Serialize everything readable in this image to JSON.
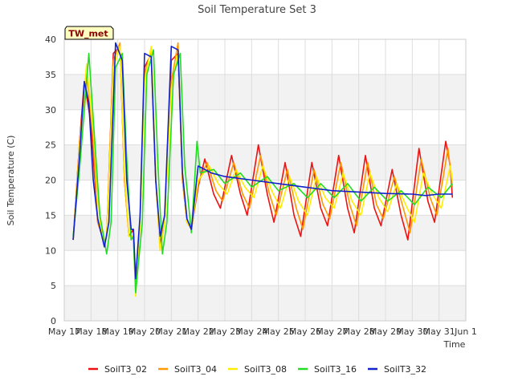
{
  "chart_data": {
    "type": "line",
    "title": "Soil Temperature Set 3",
    "xlabel": "Time",
    "ylabel": "Soil Temperature (C)",
    "ylim": [
      0,
      40
    ],
    "yticks": [
      0,
      5,
      10,
      15,
      20,
      25,
      30,
      35,
      40
    ],
    "xlim": [
      "2024-05-17",
      "2024-06-01"
    ],
    "xticks": [
      "May 17",
      "May 18",
      "May 19",
      "May 20",
      "May 21",
      "May 22",
      "May 23",
      "May 24",
      "May 25",
      "May 26",
      "May 27",
      "May 28",
      "May 29",
      "May 30",
      "May 31",
      "Jun 1"
    ],
    "grid": true,
    "legend_position": "bottom",
    "site_badge": "TW_met",
    "series": [
      {
        "name": "SoilT3_02",
        "color": "#ee1111",
        "points": [
          [
            "2024-05-17 08:00",
            11.5
          ],
          [
            "2024-05-17 14:00",
            26
          ],
          [
            "2024-05-17 18:00",
            34
          ],
          [
            "2024-05-18 00:00",
            28
          ],
          [
            "2024-05-18 06:00",
            14
          ],
          [
            "2024-05-18 12:00",
            11
          ],
          [
            "2024-05-18 14:00",
            12
          ],
          [
            "2024-05-18 20:00",
            38
          ],
          [
            "2024-05-19 02:00",
            39
          ],
          [
            "2024-05-19 06:00",
            20
          ],
          [
            "2024-05-19 10:00",
            12
          ],
          [
            "2024-05-19 14:00",
            13
          ],
          [
            "2024-05-19 16:00",
            5
          ],
          [
            "2024-05-19 20:00",
            14
          ],
          [
            "2024-05-20 00:00",
            36
          ],
          [
            "2024-05-20 06:00",
            38
          ],
          [
            "2024-05-20 10:00",
            20
          ],
          [
            "2024-05-20 14:00",
            11
          ],
          [
            "2024-05-20 18:00",
            14
          ],
          [
            "2024-05-21 00:00",
            37
          ],
          [
            "2024-05-21 06:00",
            38
          ],
          [
            "2024-05-21 10:00",
            20
          ],
          [
            "2024-05-21 14:00",
            14
          ],
          [
            "2024-05-21 18:00",
            13
          ],
          [
            "2024-05-22 00:00",
            19
          ],
          [
            "2024-05-22 06:00",
            23
          ],
          [
            "2024-05-22 14:00",
            18
          ],
          [
            "2024-05-22 20:00",
            16
          ],
          [
            "2024-05-23 06:00",
            23.5
          ],
          [
            "2024-05-23 14:00",
            18
          ],
          [
            "2024-05-23 20:00",
            15
          ],
          [
            "2024-05-24 06:00",
            25
          ],
          [
            "2024-05-24 14:00",
            18
          ],
          [
            "2024-05-24 20:00",
            14
          ],
          [
            "2024-05-25 06:00",
            22.5
          ],
          [
            "2024-05-25 14:00",
            15
          ],
          [
            "2024-05-25 20:00",
            12
          ],
          [
            "2024-05-26 06:00",
            22.5
          ],
          [
            "2024-05-26 14:00",
            16
          ],
          [
            "2024-05-26 20:00",
            13.5
          ],
          [
            "2024-05-27 06:00",
            23.5
          ],
          [
            "2024-05-27 14:00",
            16
          ],
          [
            "2024-05-27 20:00",
            12.5
          ],
          [
            "2024-05-28 06:00",
            23.5
          ],
          [
            "2024-05-28 14:00",
            16
          ],
          [
            "2024-05-28 20:00",
            13.5
          ],
          [
            "2024-05-29 06:00",
            21.5
          ],
          [
            "2024-05-29 14:00",
            15
          ],
          [
            "2024-05-29 20:00",
            11.5
          ],
          [
            "2024-05-30 06:00",
            24.5
          ],
          [
            "2024-05-30 14:00",
            17
          ],
          [
            "2024-05-30 20:00",
            14
          ],
          [
            "2024-05-31 06:00",
            25.5
          ],
          [
            "2024-05-31 10:00",
            22
          ],
          [
            "2024-05-31 12:00",
            17.5
          ]
        ]
      },
      {
        "name": "SoilT3_04",
        "color": "#ff9900",
        "points": [
          [
            "2024-05-17 08:00",
            11.5
          ],
          [
            "2024-05-17 14:00",
            26
          ],
          [
            "2024-05-17 20:00",
            35
          ],
          [
            "2024-05-18 02:00",
            26
          ],
          [
            "2024-05-18 06:00",
            14
          ],
          [
            "2024-05-18 12:00",
            11
          ],
          [
            "2024-05-18 14:00",
            12
          ],
          [
            "2024-05-18 20:00",
            37
          ],
          [
            "2024-05-19 02:00",
            39.5
          ],
          [
            "2024-05-19 06:00",
            20
          ],
          [
            "2024-05-19 10:00",
            12
          ],
          [
            "2024-05-19 14:00",
            12
          ],
          [
            "2024-05-19 16:00",
            4
          ],
          [
            "2024-05-19 20:00",
            14
          ],
          [
            "2024-05-20 00:00",
            35
          ],
          [
            "2024-05-20 06:00",
            38.5
          ],
          [
            "2024-05-20 10:00",
            20
          ],
          [
            "2024-05-20 14:00",
            10
          ],
          [
            "2024-05-20 18:00",
            14
          ],
          [
            "2024-05-21 00:00",
            34
          ],
          [
            "2024-05-21 06:00",
            39.5
          ],
          [
            "2024-05-21 10:00",
            20
          ],
          [
            "2024-05-21 14:00",
            14
          ],
          [
            "2024-05-21 18:00",
            13
          ],
          [
            "2024-05-22 00:00",
            19.5
          ],
          [
            "2024-05-22 08:00",
            22.5
          ],
          [
            "2024-05-22 16:00",
            18.5
          ],
          [
            "2024-05-22 22:00",
            17
          ],
          [
            "2024-05-23 08:00",
            22.5
          ],
          [
            "2024-05-23 16:00",
            18
          ],
          [
            "2024-05-23 22:00",
            16
          ],
          [
            "2024-05-24 08:00",
            23.5
          ],
          [
            "2024-05-24 16:00",
            18
          ],
          [
            "2024-05-24 22:00",
            15
          ],
          [
            "2024-05-25 08:00",
            21.5
          ],
          [
            "2024-05-25 16:00",
            16
          ],
          [
            "2024-05-25 22:00",
            13
          ],
          [
            "2024-05-26 08:00",
            21.5
          ],
          [
            "2024-05-26 16:00",
            16.5
          ],
          [
            "2024-05-26 22:00",
            14.5
          ],
          [
            "2024-05-27 08:00",
            22.5
          ],
          [
            "2024-05-27 16:00",
            16.5
          ],
          [
            "2024-05-27 22:00",
            13.5
          ],
          [
            "2024-05-28 08:00",
            22.5
          ],
          [
            "2024-05-28 16:00",
            16.5
          ],
          [
            "2024-05-28 22:00",
            14.5
          ],
          [
            "2024-05-29 08:00",
            20.5
          ],
          [
            "2024-05-29 16:00",
            16
          ],
          [
            "2024-05-29 22:00",
            12.5
          ],
          [
            "2024-05-30 08:00",
            23
          ],
          [
            "2024-05-30 16:00",
            17.5
          ],
          [
            "2024-05-30 22:00",
            15
          ],
          [
            "2024-05-31 08:00",
            24.5
          ],
          [
            "2024-05-31 12:00",
            19
          ]
        ]
      },
      {
        "name": "SoilT3_08",
        "color": "#ffee00",
        "points": [
          [
            "2024-05-17 08:00",
            11.5
          ],
          [
            "2024-05-17 14:00",
            25
          ],
          [
            "2024-05-17 20:00",
            36.5
          ],
          [
            "2024-05-18 02:00",
            27
          ],
          [
            "2024-05-18 08:00",
            14
          ],
          [
            "2024-05-18 12:00",
            11
          ],
          [
            "2024-05-18 14:00",
            12
          ],
          [
            "2024-05-18 20:00",
            36
          ],
          [
            "2024-05-19 02:00",
            39
          ],
          [
            "2024-05-19 06:00",
            21
          ],
          [
            "2024-05-19 10:00",
            12
          ],
          [
            "2024-05-19 14:00",
            12
          ],
          [
            "2024-05-19 16:00",
            3.5
          ],
          [
            "2024-05-19 20:00",
            14
          ],
          [
            "2024-05-20 00:00",
            34
          ],
          [
            "2024-05-20 06:00",
            39
          ],
          [
            "2024-05-20 10:00",
            21
          ],
          [
            "2024-05-20 14:00",
            10
          ],
          [
            "2024-05-20 18:00",
            14
          ],
          [
            "2024-05-21 00:00",
            33
          ],
          [
            "2024-05-21 06:00",
            38
          ],
          [
            "2024-05-21 10:00",
            21
          ],
          [
            "2024-05-21 14:00",
            14
          ],
          [
            "2024-05-21 18:00",
            13
          ],
          [
            "2024-05-22 00:00",
            20
          ],
          [
            "2024-05-22 10:00",
            22
          ],
          [
            "2024-05-22 18:00",
            19.5
          ],
          [
            "2024-05-23 02:00",
            18
          ],
          [
            "2024-05-23 10:00",
            21.5
          ],
          [
            "2024-05-23 18:00",
            19
          ],
          [
            "2024-05-24 02:00",
            17.5
          ],
          [
            "2024-05-24 10:00",
            22
          ],
          [
            "2024-05-24 18:00",
            18.5
          ],
          [
            "2024-05-25 02:00",
            16
          ],
          [
            "2024-05-25 10:00",
            20.5
          ],
          [
            "2024-05-25 18:00",
            17
          ],
          [
            "2024-05-26 02:00",
            15
          ],
          [
            "2024-05-26 10:00",
            20.5
          ],
          [
            "2024-05-26 18:00",
            17.5
          ],
          [
            "2024-05-27 02:00",
            16
          ],
          [
            "2024-05-27 10:00",
            21
          ],
          [
            "2024-05-27 18:00",
            17
          ],
          [
            "2024-05-28 02:00",
            15
          ],
          [
            "2024-05-28 10:00",
            21
          ],
          [
            "2024-05-28 18:00",
            17.5
          ],
          [
            "2024-05-29 02:00",
            15.5
          ],
          [
            "2024-05-29 10:00",
            19.5
          ],
          [
            "2024-05-29 18:00",
            16.5
          ],
          [
            "2024-05-30 02:00",
            14
          ],
          [
            "2024-05-30 10:00",
            21
          ],
          [
            "2024-05-30 18:00",
            18
          ],
          [
            "2024-05-31 02:00",
            16
          ],
          [
            "2024-05-31 10:00",
            22
          ],
          [
            "2024-05-31 12:00",
            20
          ]
        ]
      },
      {
        "name": "SoilT3_16",
        "color": "#22dd22",
        "points": [
          [
            "2024-05-17 08:00",
            12
          ],
          [
            "2024-05-17 14:00",
            22
          ],
          [
            "2024-05-17 22:00",
            38
          ],
          [
            "2024-05-18 04:00",
            24
          ],
          [
            "2024-05-18 08:00",
            15
          ],
          [
            "2024-05-18 14:00",
            9.5
          ],
          [
            "2024-05-18 18:00",
            14
          ],
          [
            "2024-05-18 22:00",
            36
          ],
          [
            "2024-05-19 04:00",
            38
          ],
          [
            "2024-05-19 08:00",
            23
          ],
          [
            "2024-05-19 12:00",
            11.5
          ],
          [
            "2024-05-19 14:00",
            12
          ],
          [
            "2024-05-19 16:00",
            4
          ],
          [
            "2024-05-19 22:00",
            14
          ],
          [
            "2024-05-20 02:00",
            35
          ],
          [
            "2024-05-20 08:00",
            38.5
          ],
          [
            "2024-05-20 12:00",
            22
          ],
          [
            "2024-05-20 16:00",
            9.5
          ],
          [
            "2024-05-20 20:00",
            14
          ],
          [
            "2024-05-21 02:00",
            35
          ],
          [
            "2024-05-21 08:00",
            38
          ],
          [
            "2024-05-21 12:00",
            22
          ],
          [
            "2024-05-21 18:00",
            12.5
          ],
          [
            "2024-05-21 23:00",
            25.5
          ],
          [
            "2024-05-22 02:00",
            21
          ],
          [
            "2024-05-22 14:00",
            21.5
          ],
          [
            "2024-05-23 00:00",
            19.5
          ],
          [
            "2024-05-23 14:00",
            21
          ],
          [
            "2024-05-24 00:00",
            19
          ],
          [
            "2024-05-24 14:00",
            20.5
          ],
          [
            "2024-05-25 00:00",
            18.5
          ],
          [
            "2024-05-25 14:00",
            19.5
          ],
          [
            "2024-05-26 02:00",
            17.5
          ],
          [
            "2024-05-26 14:00",
            19.5
          ],
          [
            "2024-05-27 02:00",
            17.5
          ],
          [
            "2024-05-27 14:00",
            19.5
          ],
          [
            "2024-05-28 02:00",
            17
          ],
          [
            "2024-05-28 14:00",
            19
          ],
          [
            "2024-05-29 02:00",
            17
          ],
          [
            "2024-05-29 14:00",
            18.5
          ],
          [
            "2024-05-30 02:00",
            16.5
          ],
          [
            "2024-05-30 14:00",
            19
          ],
          [
            "2024-05-31 02:00",
            17.5
          ],
          [
            "2024-05-31 12:00",
            19.5
          ]
        ]
      },
      {
        "name": "SoilT3_32",
        "color": "#1122cc",
        "points": [
          [
            "2024-05-17 08:00",
            11.5
          ],
          [
            "2024-05-17 14:00",
            24
          ],
          [
            "2024-05-17 18:00",
            34
          ],
          [
            "2024-05-17 22:00",
            31
          ],
          [
            "2024-05-18 02:00",
            20
          ],
          [
            "2024-05-18 06:00",
            14.5
          ],
          [
            "2024-05-18 12:00",
            10.5
          ],
          [
            "2024-05-18 16:00",
            14
          ],
          [
            "2024-05-18 22:00",
            39.5
          ],
          [
            "2024-05-19 04:00",
            37
          ],
          [
            "2024-05-19 08:00",
            20
          ],
          [
            "2024-05-19 12:00",
            13
          ],
          [
            "2024-05-19 14:00",
            13
          ],
          [
            "2024-05-19 16:00",
            6
          ],
          [
            "2024-05-19 20:00",
            15
          ],
          [
            "2024-05-20 00:00",
            38
          ],
          [
            "2024-05-20 06:00",
            37.5
          ],
          [
            "2024-05-20 10:00",
            20
          ],
          [
            "2024-05-20 14:00",
            12
          ],
          [
            "2024-05-20 18:00",
            15
          ],
          [
            "2024-05-21 00:00",
            39
          ],
          [
            "2024-05-21 06:00",
            38.5
          ],
          [
            "2024-05-21 10:00",
            21
          ],
          [
            "2024-05-21 14:00",
            14.5
          ],
          [
            "2024-05-21 18:00",
            13
          ],
          [
            "2024-05-22 00:00",
            22
          ],
          [
            "2024-05-22 12:00",
            21
          ],
          [
            "2024-05-23 00:00",
            20.5
          ],
          [
            "2024-05-24 00:00",
            20
          ],
          [
            "2024-05-25 00:00",
            19.5
          ],
          [
            "2024-05-26 00:00",
            19
          ],
          [
            "2024-05-27 00:00",
            18.5
          ],
          [
            "2024-05-28 00:00",
            18.3
          ],
          [
            "2024-05-29 00:00",
            18.1
          ],
          [
            "2024-05-30 00:00",
            18
          ],
          [
            "2024-05-30 12:00",
            17.8
          ],
          [
            "2024-05-31 00:00",
            18
          ],
          [
            "2024-05-31 12:00",
            18
          ]
        ]
      }
    ]
  }
}
